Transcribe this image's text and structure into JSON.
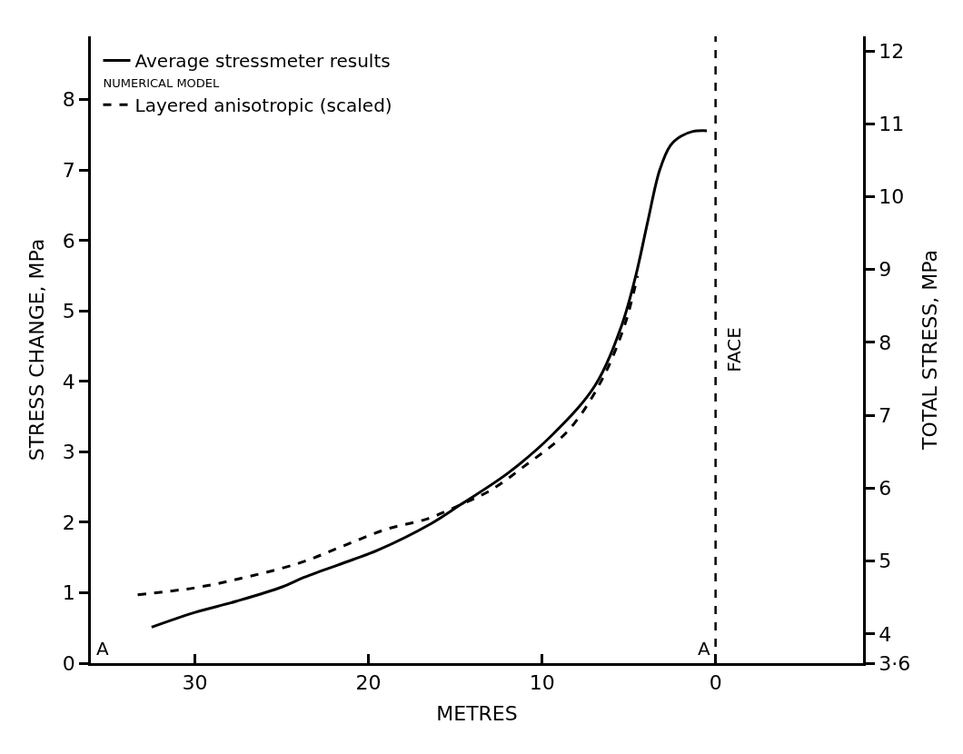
{
  "chart_data": {
    "type": "line",
    "xlabel": "METRES",
    "ylabel": "STRESS CHANGE, MPa",
    "y2label": "TOTAL STRESS, MPa",
    "xlim": [
      36,
      -8.5
    ],
    "xticks": [
      30,
      20,
      10,
      0
    ],
    "ylim": [
      0,
      8.9
    ],
    "yticks": [
      0,
      1,
      2,
      3,
      4,
      5,
      6,
      7,
      8
    ],
    "y2lim": [
      3.6,
      12.2
    ],
    "y2ticks": [
      {
        "value": 3.6,
        "label": "3·6"
      },
      4,
      5,
      6,
      7,
      8,
      9,
      10,
      11,
      12
    ],
    "legend": "top left",
    "series": [
      {
        "name": "Average stressmeter results",
        "color": "#000000",
        "line_style": "solid",
        "x": [
          32.5,
          30,
          27.6,
          25,
          23.7,
          20.9,
          19.5,
          16.4,
          14.76,
          11.9,
          9.33,
          6.95,
          5.42,
          4.58,
          3.9,
          3.22,
          2.6,
          2.0,
          1.3,
          0.5
        ],
        "values": [
          0.51,
          0.72,
          0.88,
          1.08,
          1.22,
          1.47,
          1.6,
          1.98,
          2.24,
          2.71,
          3.26,
          3.94,
          4.79,
          5.52,
          6.28,
          7.0,
          7.35,
          7.48,
          7.55,
          7.56
        ]
      },
      {
        "name": "Layered anisotropic (scaled)",
        "color": "#000000",
        "line_style": "dashed",
        "x": [
          33.3,
          30,
          27.6,
          24,
          21.5,
          19,
          16.6,
          14.7,
          13,
          11,
          8.5,
          6.6,
          5.25,
          4.5
        ],
        "values": [
          0.97,
          1.07,
          1.19,
          1.42,
          1.66,
          1.9,
          2.05,
          2.25,
          2.45,
          2.8,
          3.3,
          4.0,
          4.79,
          5.5
        ]
      }
    ],
    "ref_lines": [
      {
        "axis": "x",
        "value": 0,
        "label": "FACE",
        "color": "#000000",
        "line_style": "dashed"
      }
    ],
    "annotations": [
      "NUMERICAL MODEL",
      "A",
      "A"
    ]
  }
}
